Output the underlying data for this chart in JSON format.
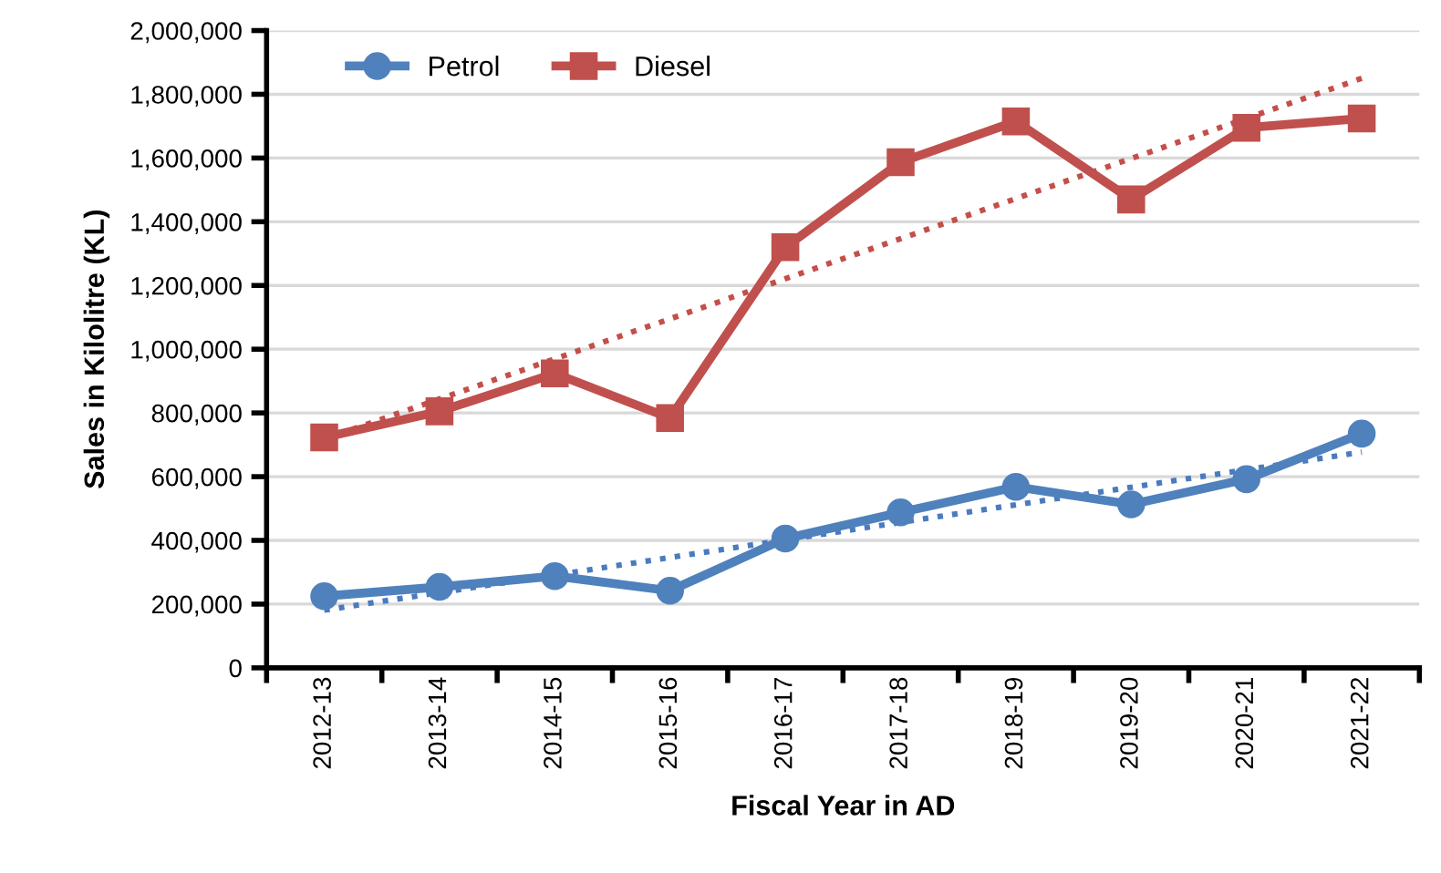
{
  "chart_data": {
    "type": "line",
    "xlabel": "Fiscal Year in AD",
    "ylabel": "Sales in Kilolitre (KL)",
    "categories": [
      "2012-13",
      "2013-14",
      "2014-15",
      "2015-16",
      "2016-17",
      "2017-18",
      "2018-19",
      "2019-20",
      "2020-21",
      "2021-22"
    ],
    "series": [
      {
        "name": "Petrol",
        "color": "#4f81bd",
        "marker": "circle",
        "line_style": "solid",
        "values": [
          225000,
          254000,
          288000,
          242000,
          406000,
          488000,
          568000,
          513000,
          592000,
          735000
        ]
      },
      {
        "name": "Diesel",
        "color": "#c0504d",
        "marker": "square",
        "line_style": "solid",
        "values": [
          723000,
          805000,
          924000,
          784000,
          1320000,
          1587000,
          1715000,
          1470000,
          1695000,
          1724000
        ]
      },
      {
        "color": "#4a7bbf",
        "marker": "none",
        "line_style": "dotted",
        "x": [
          "2012-13",
          "2021-22"
        ],
        "values": [
          181000,
          677000
        ]
      },
      {
        "color": "#c44f4a",
        "marker": "none",
        "line_style": "dotted",
        "x": [
          "2012-13",
          "2021-22"
        ],
        "values": [
          718000,
          1850000
        ]
      }
    ],
    "ylim": [
      0,
      2000000
    ],
    "yticks": [
      {
        "value": 0,
        "label": "0"
      },
      {
        "value": 200000,
        "label": "200,000"
      },
      {
        "value": 400000,
        "label": "400,000"
      },
      {
        "value": 600000,
        "label": "600,000"
      },
      {
        "value": 800000,
        "label": "800,000"
      },
      {
        "value": 1000000,
        "label": "1,000,000"
      },
      {
        "value": 1200000,
        "label": "1,200,000"
      },
      {
        "value": 1400000,
        "label": "1,400,000"
      },
      {
        "value": 1600000,
        "label": "1,600,000"
      },
      {
        "value": 1800000,
        "label": "1,800,000"
      },
      {
        "value": 2000000,
        "label": "2,000,000"
      }
    ],
    "grid": "y",
    "legend": "top left"
  }
}
